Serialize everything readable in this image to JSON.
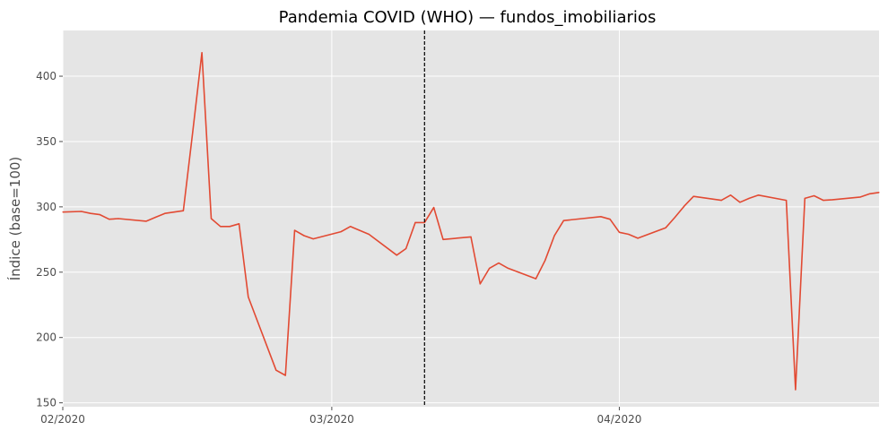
{
  "chart_data": {
    "type": "line",
    "title": "Pandemia COVID (WHO) — fundos_imobiliarios",
    "xlabel": "",
    "ylabel": "Índice (base=100)",
    "xlim": [
      "2020-02-01",
      "2020-04-29"
    ],
    "ylim": [
      147,
      435
    ],
    "x_ticks": [
      {
        "date": "2020-02-01",
        "label": "02/2020"
      },
      {
        "date": "2020-03-01",
        "label": "03/2020"
      },
      {
        "date": "2020-04-01",
        "label": "04/2020"
      }
    ],
    "y_ticks": [
      150,
      200,
      250,
      300,
      350,
      400
    ],
    "grid": true,
    "background": "#e5e5e5",
    "line_color": "#e24a33",
    "event_line": {
      "date": "2020-03-11",
      "style": "dashed",
      "color": "#000000"
    },
    "series": [
      {
        "x": [
          "2020-02-01",
          "2020-02-03",
          "2020-02-04",
          "2020-02-05",
          "2020-02-06",
          "2020-02-07",
          "2020-02-10",
          "2020-02-11",
          "2020-02-12",
          "2020-02-13",
          "2020-02-14",
          "2020-02-15",
          "2020-02-16",
          "2020-02-17",
          "2020-02-18",
          "2020-02-19",
          "2020-02-20",
          "2020-02-21",
          "2020-02-24",
          "2020-02-25",
          "2020-02-26",
          "2020-02-27",
          "2020-02-28",
          "2020-03-02",
          "2020-03-03",
          "2020-03-04",
          "2020-03-05",
          "2020-03-08",
          "2020-03-09",
          "2020-03-10",
          "2020-03-11",
          "2020-03-12",
          "2020-03-13",
          "2020-03-16",
          "2020-03-17",
          "2020-03-18",
          "2020-03-19",
          "2020-03-20",
          "2020-03-23",
          "2020-03-24",
          "2020-03-25",
          "2020-03-26",
          "2020-03-30",
          "2020-03-31",
          "2020-04-01",
          "2020-04-02",
          "2020-04-03",
          "2020-04-06",
          "2020-04-07",
          "2020-04-08",
          "2020-04-09",
          "2020-04-12",
          "2020-04-13",
          "2020-04-14",
          "2020-04-15",
          "2020-04-16",
          "2020-04-19",
          "2020-04-20",
          "2020-04-21",
          "2020-04-22",
          "2020-04-23",
          "2020-04-24",
          "2020-04-27",
          "2020-04-28",
          "2020-04-29"
        ],
        "y": [
          296,
          296.5,
          295,
          294,
          290.5,
          291,
          289,
          292,
          295,
          296,
          297,
          357,
          418,
          291,
          285,
          285,
          287,
          231,
          175,
          171,
          282,
          278,
          275.5,
          281,
          285,
          282,
          279,
          263,
          268,
          288,
          288,
          299.5,
          275,
          277,
          241,
          253,
          257,
          253,
          245,
          259,
          278,
          289.5,
          292.5,
          290.5,
          280.5,
          279,
          276,
          284,
          292,
          300.5,
          308,
          305,
          309,
          303.5,
          306.5,
          309,
          305,
          160,
          306.5,
          308.5,
          305,
          305.5,
          307.5,
          310,
          311
        ]
      }
    ]
  }
}
